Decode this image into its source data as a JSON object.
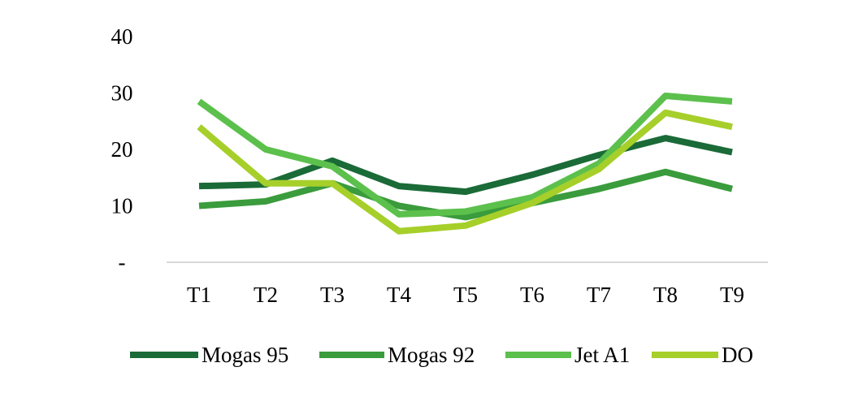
{
  "chart_data": {
    "type": "line",
    "categories": [
      "T1",
      "T2",
      "T3",
      "T4",
      "T5",
      "T6",
      "T7",
      "T8",
      "T9"
    ],
    "y_ticks": [
      "-",
      "10",
      "20",
      "30",
      "40"
    ],
    "y_tick_values": [
      0,
      10,
      20,
      30,
      40
    ],
    "ylim": [
      0,
      40
    ],
    "grid": false,
    "legend_position": "bottom",
    "series": [
      {
        "name": "Mogas 95",
        "color": "#1a6b37",
        "values": [
          13.5,
          13.8,
          18.0,
          13.5,
          12.5,
          15.5,
          19.0,
          22.0,
          19.5
        ]
      },
      {
        "name": "Mogas 92",
        "color": "#3a9c3c",
        "values": [
          10.0,
          10.8,
          14.0,
          10.0,
          8.0,
          10.5,
          13.0,
          16.0,
          13.0
        ]
      },
      {
        "name": "Jet A1",
        "color": "#5cc04c",
        "values": [
          28.5,
          20.0,
          17.0,
          8.5,
          9.0,
          11.5,
          17.5,
          29.5,
          28.5
        ]
      },
      {
        "name": "DO",
        "color": "#a6cf2a",
        "values": [
          24.0,
          14.0,
          14.0,
          5.5,
          6.5,
          10.5,
          16.5,
          26.5,
          24.0
        ]
      }
    ]
  }
}
